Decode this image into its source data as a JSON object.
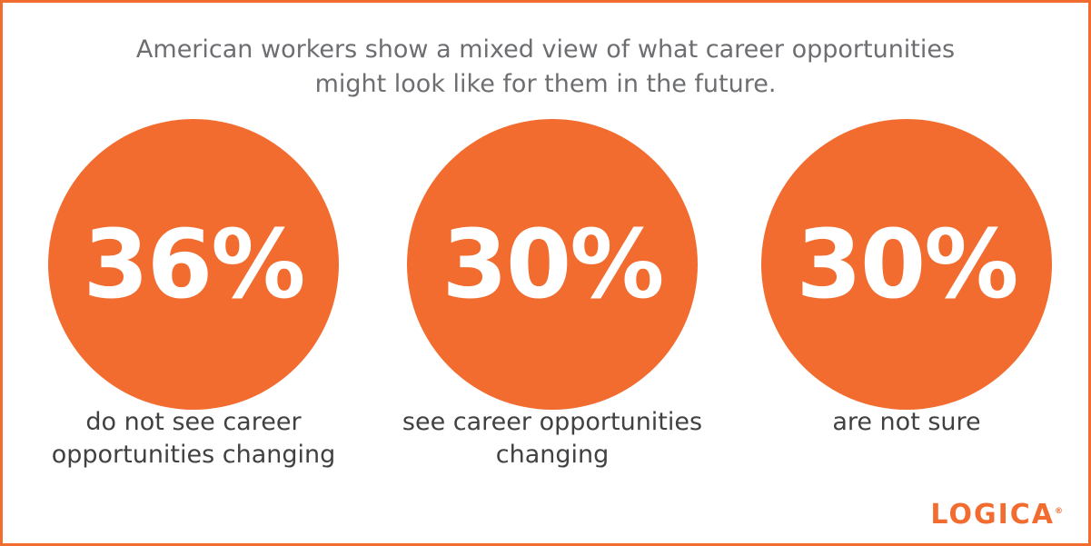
{
  "header": {
    "title_lines": [
      "American workers show a mixed view of what career opportunities",
      "might look like for them in the future."
    ]
  },
  "stats": [
    {
      "value": "36%",
      "label_lines": [
        "do not see career",
        "opportunities changing"
      ]
    },
    {
      "value": "30%",
      "label_lines": [
        "see career opportunities",
        "changing"
      ]
    },
    {
      "value": "30%",
      "label_lines": [
        "are not sure"
      ]
    }
  ],
  "logo": {
    "text": "LOGICA",
    "mark": "®"
  }
}
